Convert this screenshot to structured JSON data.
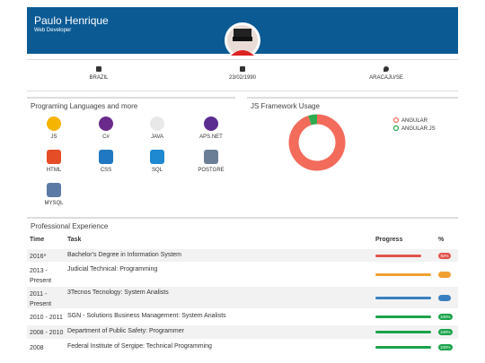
{
  "header": {
    "name": "Paulo Henrique",
    "role": "Web Developer"
  },
  "info": [
    "BRAZIL",
    "23/02/1990",
    "ARACAJU/SE"
  ],
  "languages": {
    "title": "Programing Languages and more",
    "items": [
      {
        "label": "JS",
        "color": "#f5b400"
      },
      {
        "label": "C#",
        "color": "#6a2a8c"
      },
      {
        "label": "JAVA",
        "color": "#e8e8e8"
      },
      {
        "label": "APS.NET",
        "color": "#5c2d91"
      },
      {
        "label": "HTML",
        "color": "#e44d26"
      },
      {
        "label": "CSS",
        "color": "#1f78c1"
      },
      {
        "label": "SQL",
        "color": "#1e88d0"
      },
      {
        "label": "POSTGRE",
        "color": "#6a7f95"
      },
      {
        "label": "MYSQL",
        "color": "#5b7aa6"
      }
    ]
  },
  "framework_usage": {
    "title": "JS Framework Usage",
    "series": [
      {
        "name": "ANGULAR",
        "color": "#f26b5b",
        "value": 95
      },
      {
        "name": "ANGULAR.JS",
        "color": "#2eaa4e",
        "value": 5
      }
    ]
  },
  "experience": {
    "title": "Professional Experience",
    "columns": [
      "Time",
      "Task",
      "Progress",
      "%"
    ],
    "rows": [
      {
        "time": "2016*",
        "task": "Bachelor's Degree in Information System",
        "progress": 82,
        "label": "82%",
        "color": "#e0534a"
      },
      {
        "time": "2013 - Present",
        "task": "Judicial Technical: Programming",
        "progress": 100,
        "label": null,
        "color": "#f0a030"
      },
      {
        "time": "2011 - Present",
        "task": "3Tecnos Tecnology: System Analists",
        "progress": 100,
        "label": null,
        "color": "#3a7fc1"
      },
      {
        "time": "2010 - 2011",
        "task": "SGN - Solutions Business Management: System Analists",
        "progress": 100,
        "label": "100%",
        "color": "#1aa34a"
      },
      {
        "time": "2008 - 2010",
        "task": "Department of Public Safety: Programmer",
        "progress": 100,
        "label": "100%",
        "color": "#1aa34a"
      },
      {
        "time": "2008",
        "task": "Federal Institute of Sergipe: Technical Programming",
        "progress": 100,
        "label": "100%",
        "color": "#1aa34a"
      }
    ]
  }
}
